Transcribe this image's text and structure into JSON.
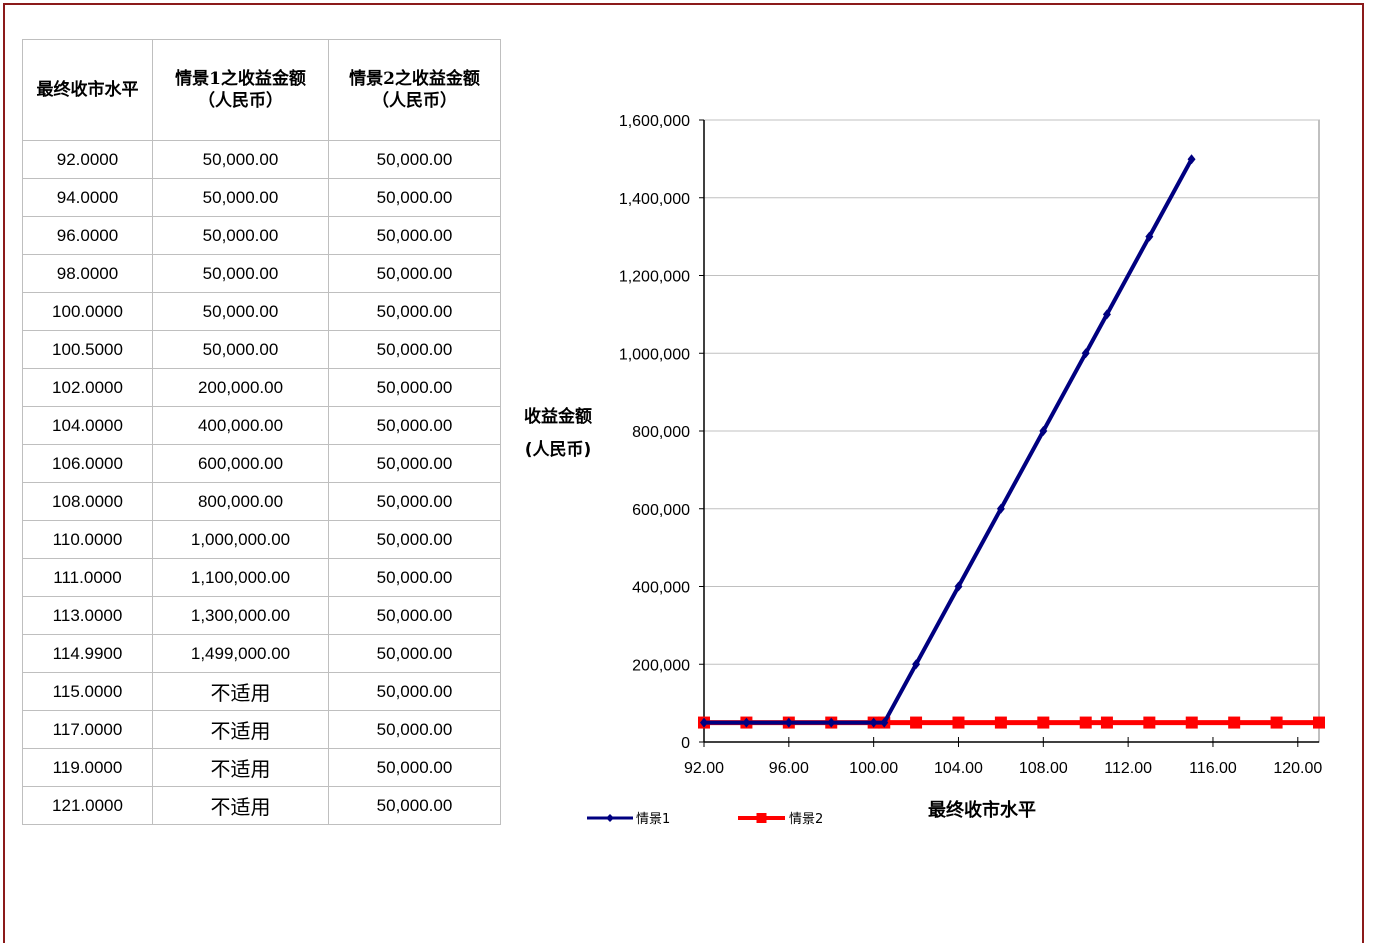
{
  "table": {
    "headers": [
      "最终收市水平",
      "情景1之收益金额（人民币）",
      "情景2之收益金额（人民币）"
    ],
    "rows": [
      [
        "92.0000",
        "50,000.00",
        "50,000.00"
      ],
      [
        "94.0000",
        "50,000.00",
        "50,000.00"
      ],
      [
        "96.0000",
        "50,000.00",
        "50,000.00"
      ],
      [
        "98.0000",
        "50,000.00",
        "50,000.00"
      ],
      [
        "100.0000",
        "50,000.00",
        "50,000.00"
      ],
      [
        "100.5000",
        "50,000.00",
        "50,000.00"
      ],
      [
        "102.0000",
        "200,000.00",
        "50,000.00"
      ],
      [
        "104.0000",
        "400,000.00",
        "50,000.00"
      ],
      [
        "106.0000",
        "600,000.00",
        "50,000.00"
      ],
      [
        "108.0000",
        "800,000.00",
        "50,000.00"
      ],
      [
        "110.0000",
        "1,000,000.00",
        "50,000.00"
      ],
      [
        "111.0000",
        "1,100,000.00",
        "50,000.00"
      ],
      [
        "113.0000",
        "1,300,000.00",
        "50,000.00"
      ],
      [
        "114.9900",
        "1,499,000.00",
        "50,000.00"
      ],
      [
        "115.0000",
        "不适用",
        "50,000.00"
      ],
      [
        "117.0000",
        "不适用",
        "50,000.00"
      ],
      [
        "119.0000",
        "不适用",
        "50,000.00"
      ],
      [
        "121.0000",
        "不适用",
        "50,000.00"
      ]
    ]
  },
  "chart_data": {
    "type": "line",
    "ylabel_lines": [
      "收益金额",
      "(人民币)"
    ],
    "xlabel": "最终收市水平",
    "xlim": [
      92,
      121
    ],
    "ylim": [
      0,
      1600000
    ],
    "xticks": [
      92,
      96,
      100,
      104,
      108,
      112,
      116,
      120
    ],
    "xtick_labels": [
      "92.00",
      "96.00",
      "100.00",
      "104.00",
      "108.00",
      "112.00",
      "116.00",
      "120.00"
    ],
    "yticks": [
      0,
      200000,
      400000,
      600000,
      800000,
      1000000,
      1200000,
      1400000,
      1600000
    ],
    "ytick_labels": [
      "0",
      "200,000",
      "400,000",
      "600,000",
      "800,000",
      "1,000,000",
      "1,200,000",
      "1,400,000",
      "1,600,000"
    ],
    "grid": "horizontal",
    "legend_position": "bottom-left",
    "series": [
      {
        "name": "情景1",
        "color": "#000080",
        "marker": "diamond",
        "x": [
          92,
          94,
          96,
          98,
          100,
          100.5,
          102,
          104,
          106,
          108,
          110,
          111,
          113,
          114.99
        ],
        "y": [
          50000,
          50000,
          50000,
          50000,
          50000,
          50000,
          200000,
          400000,
          600000,
          800000,
          1000000,
          1100000,
          1300000,
          1499000
        ]
      },
      {
        "name": "情景2",
        "color": "#ff0000",
        "marker": "square",
        "x": [
          92,
          94,
          96,
          98,
          100,
          100.5,
          102,
          104,
          106,
          108,
          110,
          111,
          113,
          115,
          117,
          119,
          121
        ],
        "y": [
          50000,
          50000,
          50000,
          50000,
          50000,
          50000,
          50000,
          50000,
          50000,
          50000,
          50000,
          50000,
          50000,
          50000,
          50000,
          50000,
          50000
        ]
      }
    ]
  }
}
